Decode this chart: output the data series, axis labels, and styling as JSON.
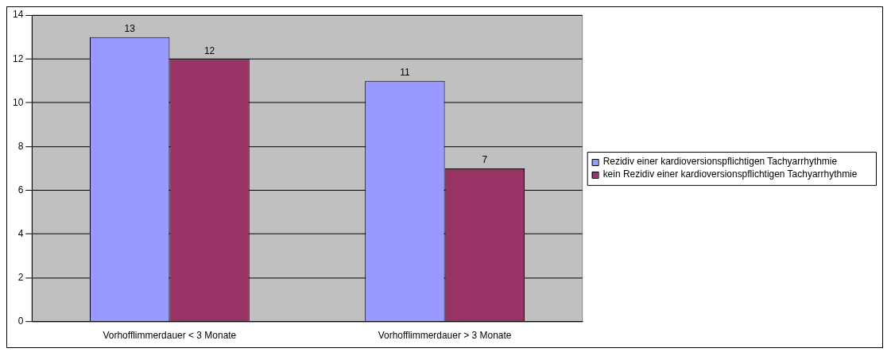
{
  "chart_data": {
    "type": "bar",
    "categories": [
      "Vorhofflimmerdauer < 3 Monate",
      "Vorhofflimmerdauer > 3 Monate"
    ],
    "series": [
      {
        "name": "Rezidiv einer kardioversionspflichtigen Tachyarrhythmie",
        "color": "#9999ff",
        "values": [
          13,
          11
        ]
      },
      {
        "name": "kein Rezidiv einer kardioversionspflichtigen Tachyarrhythmie",
        "color": "#993366",
        "values": [
          12,
          7
        ]
      }
    ],
    "ylim": [
      0,
      14
    ],
    "yticks": [
      0,
      2,
      4,
      6,
      8,
      10,
      12,
      14
    ],
    "grid": "y",
    "legend": "right",
    "data_labels": true
  }
}
